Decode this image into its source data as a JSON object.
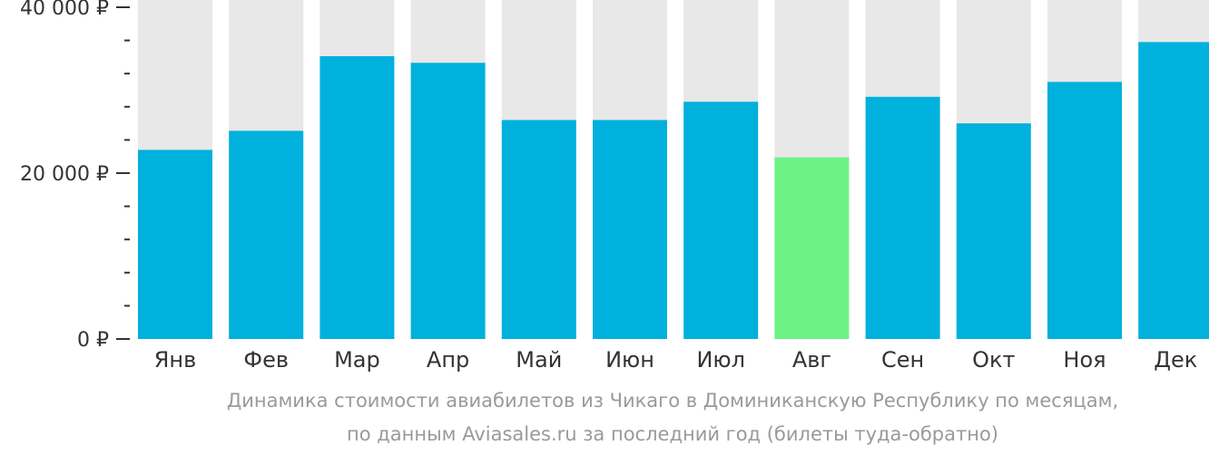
{
  "chart_data": {
    "type": "bar",
    "categories": [
      "Янв",
      "Фев",
      "Мар",
      "Апр",
      "Май",
      "Июн",
      "Июл",
      "Авг",
      "Сен",
      "Окт",
      "Ноя",
      "Дек"
    ],
    "values": [
      22800,
      25100,
      34100,
      33300,
      26400,
      26400,
      28600,
      21900,
      29200,
      26000,
      31000,
      35800
    ],
    "ylim": [
      0,
      40000
    ],
    "yticks": [
      {
        "value": 0,
        "label": "0 ₽"
      },
      {
        "value": 20000,
        "label": "20 000 ₽"
      },
      {
        "value": 40000,
        "label": "40 000 ₽"
      }
    ],
    "minor_tick_step": 4000,
    "highlight_index": 7,
    "colors": {
      "bar": "#00b0dd",
      "highlight": "#6cf285",
      "background_bar": "#e8e8e8",
      "axis": "#333333"
    }
  },
  "caption": {
    "line1": "Динамика стоимости авиабилетов из Чикаго в Доминиканскую Республику по месяцам,",
    "line2": "по данным Aviasales.ru за последний год (билеты туда-обратно)"
  }
}
